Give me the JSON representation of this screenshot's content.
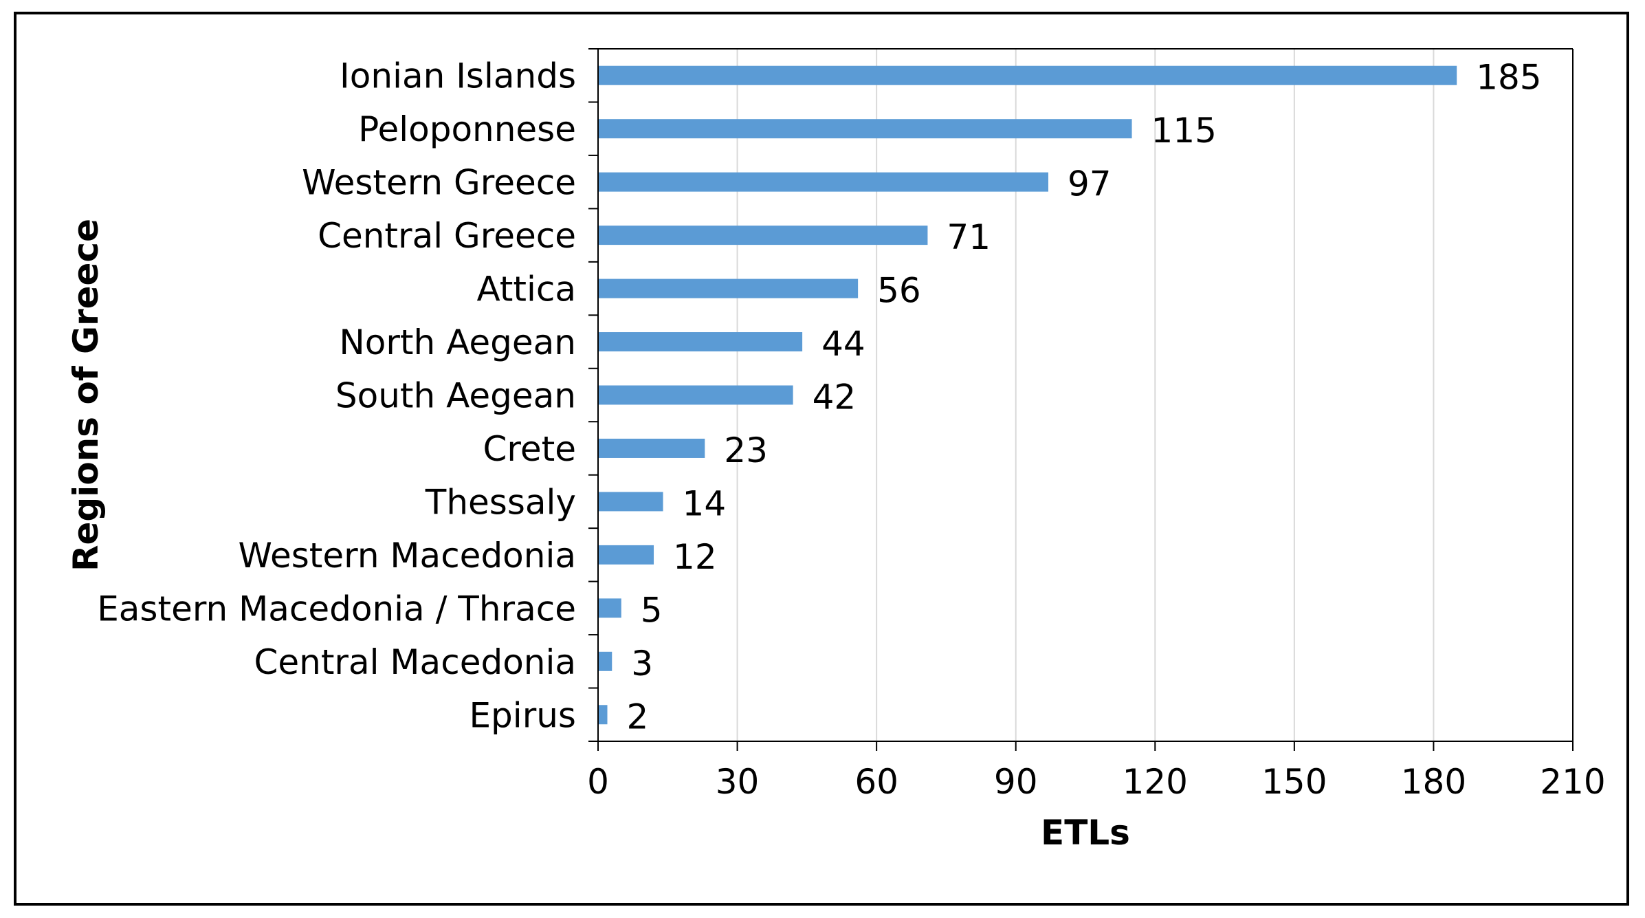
{
  "chart_data": {
    "type": "bar",
    "orientation": "horizontal",
    "categories": [
      "Ionian Islands",
      "Peloponnese",
      "Western Greece",
      "Central Greece",
      "Attica",
      "North Aegean",
      "South Aegean",
      "Crete",
      "Thessaly",
      "Western Macedonia",
      "Eastern Macedonia / Thrace",
      "Central Macedonia",
      "Epirus"
    ],
    "values": [
      185,
      115,
      97,
      71,
      56,
      44,
      42,
      23,
      14,
      12,
      5,
      3,
      2
    ],
    "xlabel": "ETLs",
    "ylabel": "Regions of Greece",
    "xlim": [
      0,
      210
    ],
    "xticks": [
      0,
      30,
      60,
      90,
      120,
      150,
      180,
      210
    ],
    "grid": "vertical",
    "legend": "none",
    "bar_color": "#5b9bd5",
    "grid_color": "#d9d9d9"
  }
}
